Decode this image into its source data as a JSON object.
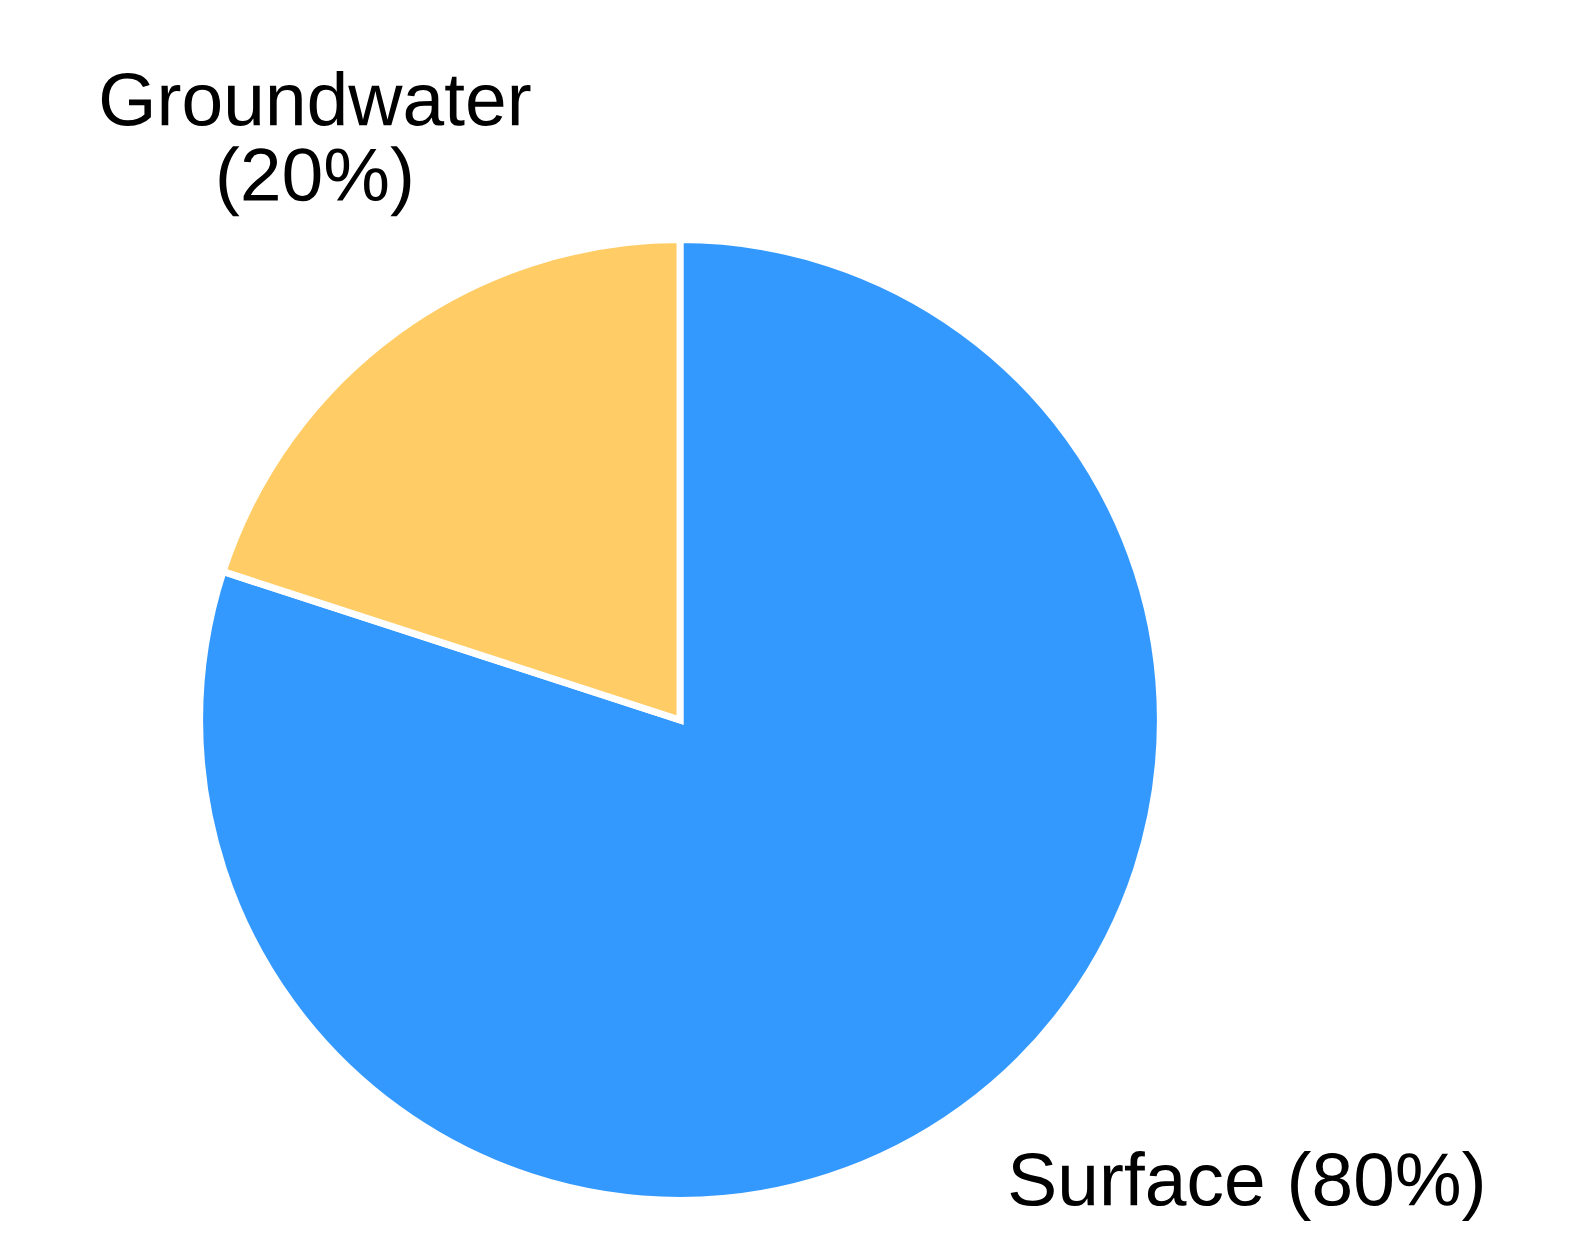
{
  "chart_data": {
    "type": "pie",
    "categories": [
      "Surface",
      "Groundwater"
    ],
    "values": [
      80,
      20
    ],
    "colors": [
      "#3399ff",
      "#ffcc66"
    ],
    "value_labels": [
      "(80%)",
      "(20%)"
    ]
  }
}
